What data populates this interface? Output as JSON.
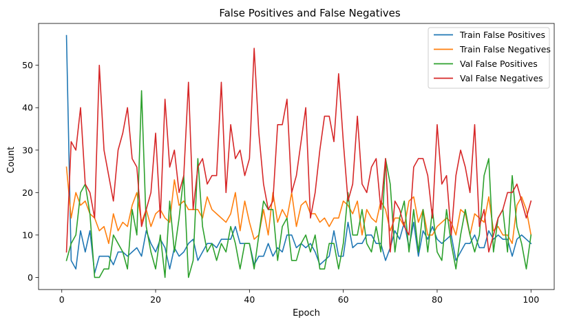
{
  "chart_data": {
    "type": "line",
    "title": "False Positives and False Negatives",
    "xlabel": "Epoch",
    "ylabel": "Count",
    "xlim": [
      -4.95,
      104.95
    ],
    "ylim": [
      -2.85,
      59.85
    ],
    "xticks": [
      0,
      20,
      40,
      60,
      80,
      100
    ],
    "yticks": [
      0,
      10,
      20,
      30,
      40,
      50
    ],
    "grid": false,
    "legend_position": "top-right",
    "x": [
      1,
      2,
      3,
      4,
      5,
      6,
      7,
      8,
      9,
      10,
      11,
      12,
      13,
      14,
      15,
      16,
      17,
      18,
      19,
      20,
      21,
      22,
      23,
      24,
      25,
      26,
      27,
      28,
      29,
      30,
      31,
      32,
      33,
      34,
      35,
      36,
      37,
      38,
      39,
      40,
      41,
      42,
      43,
      44,
      45,
      46,
      47,
      48,
      49,
      50,
      51,
      52,
      53,
      54,
      55,
      56,
      57,
      58,
      59,
      60,
      61,
      62,
      63,
      64,
      65,
      66,
      67,
      68,
      69,
      70,
      71,
      72,
      73,
      74,
      75,
      76,
      77,
      78,
      79,
      80,
      81,
      82,
      83,
      84,
      85,
      86,
      87,
      88,
      89,
      90,
      91,
      92,
      93,
      94,
      95,
      96,
      97,
      98,
      99,
      100
    ],
    "series": [
      {
        "name": "Train False Positives",
        "color": "#1f77b4",
        "values": [
          57,
          4,
          2,
          11,
          6,
          11,
          1,
          5,
          5,
          5,
          3,
          6,
          6,
          5,
          6,
          7,
          5,
          11,
          8,
          6,
          9,
          7,
          2,
          7,
          5,
          6,
          8,
          9,
          4,
          6,
          8,
          8,
          7,
          9,
          9,
          9,
          12,
          8,
          8,
          8,
          3,
          5,
          5,
          8,
          5,
          7,
          6,
          10,
          10,
          7,
          8,
          7,
          8,
          6,
          3,
          4,
          5,
          11,
          5,
          5,
          13,
          7,
          8,
          8,
          10,
          10,
          8,
          8,
          4,
          7,
          11,
          9,
          13,
          7,
          13,
          5,
          11,
          9,
          12,
          9,
          8,
          9,
          10,
          4,
          6,
          8,
          8,
          10,
          7,
          7,
          11,
          9,
          10,
          9,
          9,
          5,
          9,
          10,
          9,
          8
        ]
      },
      {
        "name": "Train False Negatives",
        "color": "#ff7f0e",
        "values": [
          26,
          14,
          20,
          17,
          18,
          15,
          14,
          11,
          12,
          8,
          15,
          11,
          13,
          12,
          17,
          20,
          13,
          16,
          12,
          15,
          16,
          14,
          13,
          23,
          17,
          18,
          16,
          16,
          16,
          14,
          19,
          16,
          15,
          14,
          13,
          15,
          20,
          11,
          18,
          13,
          9,
          10,
          16,
          10,
          20,
          13,
          16,
          14,
          20,
          12,
          17,
          18,
          15,
          15,
          13,
          14,
          12,
          14,
          14,
          18,
          17,
          15,
          18,
          10,
          16,
          14,
          13,
          18,
          16,
          11,
          14,
          14,
          12,
          18,
          19,
          13,
          16,
          10,
          10,
          12,
          13,
          14,
          13,
          10,
          16,
          15,
          10,
          15,
          14,
          13,
          19,
          11,
          12,
          10,
          10,
          8,
          17,
          19,
          16,
          10
        ]
      },
      {
        "name": "Val False Positives",
        "color": "#2ca02c",
        "values": [
          4,
          8,
          10,
          20,
          22,
          15,
          0,
          0,
          2,
          2,
          10,
          8,
          6,
          2,
          16,
          10,
          44,
          12,
          6,
          2,
          10,
          0,
          18,
          6,
          14,
          24,
          0,
          4,
          28,
          12,
          6,
          8,
          4,
          8,
          6,
          12,
          8,
          2,
          8,
          8,
          2,
          10,
          18,
          16,
          16,
          4,
          12,
          14,
          4,
          4,
          8,
          10,
          6,
          10,
          2,
          2,
          8,
          8,
          2,
          8,
          20,
          10,
          10,
          16,
          8,
          6,
          12,
          6,
          28,
          22,
          6,
          14,
          18,
          6,
          16,
          6,
          16,
          6,
          16,
          6,
          4,
          16,
          8,
          2,
          10,
          16,
          10,
          6,
          10,
          24,
          28,
          6,
          14,
          16,
          6,
          24,
          12,
          8,
          2,
          10
        ]
      },
      {
        "name": "Val False Negatives",
        "color": "#d62728",
        "values": [
          6,
          32,
          30,
          40,
          22,
          20,
          14,
          50,
          30,
          24,
          18,
          30,
          34,
          40,
          28,
          26,
          12,
          16,
          20,
          34,
          14,
          42,
          26,
          30,
          20,
          24,
          46,
          16,
          26,
          28,
          22,
          24,
          24,
          46,
          20,
          36,
          28,
          30,
          24,
          28,
          54,
          34,
          22,
          16,
          18,
          36,
          36,
          42,
          20,
          24,
          32,
          40,
          14,
          20,
          30,
          38,
          38,
          32,
          48,
          32,
          18,
          22,
          38,
          22,
          20,
          26,
          28,
          16,
          28,
          6,
          18,
          16,
          12,
          10,
          26,
          28,
          28,
          24,
          14,
          36,
          22,
          24,
          10,
          24,
          30,
          26,
          20,
          36,
          12,
          16,
          6,
          10,
          14,
          16,
          20,
          20,
          22,
          18,
          14,
          18
        ]
      }
    ]
  }
}
